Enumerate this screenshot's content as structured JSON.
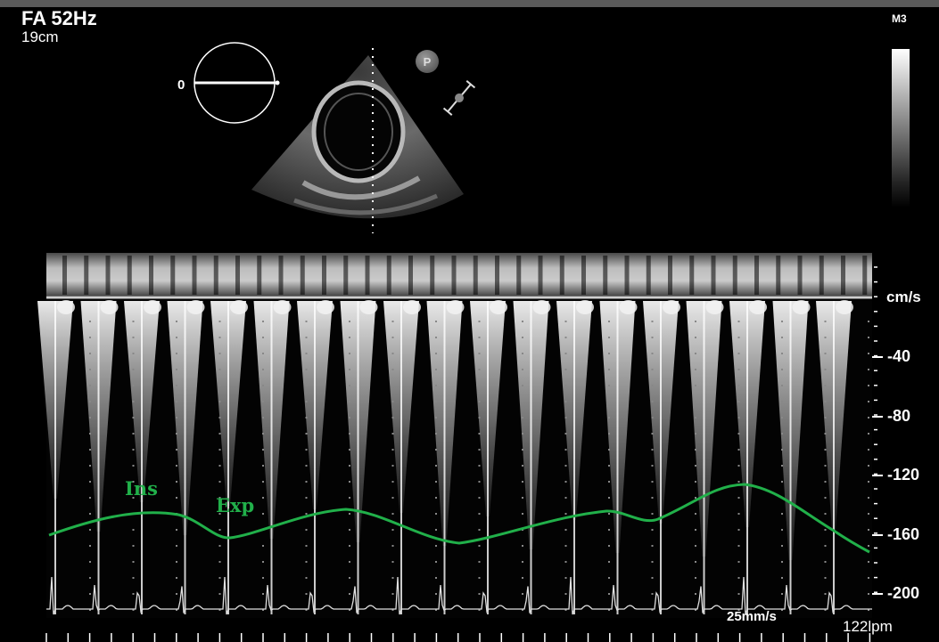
{
  "header": {
    "mode_freq": "FA 52Hz",
    "depth": "19cm"
  },
  "probe": {
    "mode_label": "M3",
    "angle": "0",
    "position_badge": "P",
    "tx_marker": "TX"
  },
  "doppler": {
    "unit": "cm/s",
    "scale_labels": [
      "-40",
      "-80",
      "-120",
      "-160",
      "-200"
    ],
    "sweep_speed": "25mm/s",
    "heart_rate": "122lpm"
  },
  "annotations": {
    "inspiration": "Ins",
    "expiration": "Exp"
  },
  "colors": {
    "respiratory_trace": "#21b04a",
    "background": "#000000"
  }
}
